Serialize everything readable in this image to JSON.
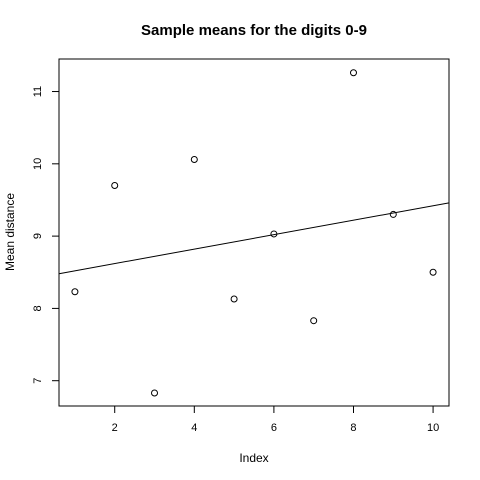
{
  "chart_data": {
    "type": "scatter",
    "title": "Sample means for the digits 0-9",
    "xlabel": "Index",
    "ylabel": "Mean distance",
    "x": [
      1,
      2,
      3,
      4,
      5,
      6,
      7,
      8,
      9,
      10
    ],
    "y": [
      8.23,
      9.7,
      6.83,
      10.06,
      8.13,
      9.03,
      7.83,
      11.26,
      9.3,
      8.5
    ],
    "xlim": [
      0.6,
      10.4
    ],
    "ylim": [
      6.65,
      11.45
    ],
    "xticks": [
      2,
      4,
      6,
      8,
      10
    ],
    "yticks": [
      7,
      8,
      9,
      10,
      11
    ],
    "fit_line": {
      "intercept": 8.42,
      "slope": 0.1
    },
    "grid": false,
    "marker": "open-circle"
  }
}
